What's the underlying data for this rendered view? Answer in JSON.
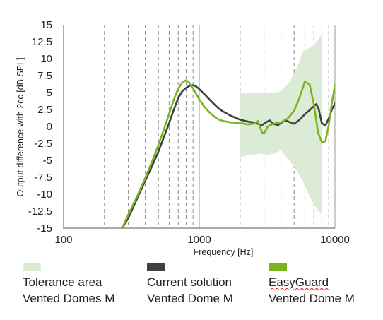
{
  "chart_data": {
    "type": "line",
    "xlabel": "Frequency [Hz]",
    "ylabel": "Output difference with 2cc [dB SPL]",
    "xscale": "log",
    "xlim": [
      100,
      10000
    ],
    "ylim": [
      -15,
      15
    ],
    "xticks": [
      "100",
      "1000",
      "10000"
    ],
    "yticks": [
      "15",
      "12.5",
      "10",
      "7.5",
      "5",
      "2.5",
      "0",
      "-2.5",
      "-5",
      "-7.5",
      "-10",
      "-12.5",
      "-15"
    ],
    "grid": "vertical dashed at minor log decades, solid at decades; no horizontal grid",
    "tolerance_area": {
      "name": "Tolerance area Vented Domes M",
      "color": "#dcebd6",
      "x": [
        2000,
        2400,
        2800,
        3200,
        3600,
        4000,
        4600,
        5200,
        5800,
        6400,
        7000,
        7600,
        8000
      ],
      "upper": [
        5.0,
        5.0,
        5.0,
        5.0,
        5.0,
        5.2,
        6.5,
        8.5,
        11.0,
        11.5,
        12.0,
        13.0,
        13.5
      ],
      "lower": [
        -4.5,
        -4.2,
        -4.0,
        -4.2,
        -4.0,
        -3.5,
        -5.0,
        -6.5,
        -8.0,
        -10.0,
        -11.5,
        -12.5,
        -13.0
      ]
    },
    "series": [
      {
        "name": "Current solution Vented Dome M",
        "color": "#404040",
        "x": [
          270,
          300,
          350,
          400,
          450,
          500,
          550,
          600,
          650,
          700,
          750,
          800,
          850,
          900,
          950,
          1000,
          1100,
          1200,
          1300,
          1400,
          1500,
          1700,
          2000,
          2300,
          2500,
          2700,
          2900,
          3100,
          3300,
          3500,
          3800,
          4000,
          4300,
          4700,
          5000,
          5500,
          6000,
          6500,
          7000,
          7300,
          7600,
          8000,
          8500,
          9000,
          9500,
          10000
        ],
        "y": [
          -15,
          -13.5,
          -10.5,
          -8,
          -5.8,
          -3.7,
          -1.5,
          0.5,
          2.5,
          4.2,
          5.2,
          5.7,
          6.0,
          6.1,
          5.9,
          5.5,
          4.7,
          3.9,
          3.2,
          2.6,
          2.2,
          1.6,
          1.0,
          0.7,
          0.6,
          0.4,
          0.2,
          0.6,
          0.9,
          0.4,
          0.2,
          0.5,
          0.9,
          0.6,
          0.4,
          1.0,
          1.8,
          2.4,
          3.0,
          3.3,
          2.5,
          0.5,
          0.1,
          1.2,
          2.5,
          3.4
        ]
      },
      {
        "name": "EasyGuard Vented Dome M",
        "color": "#7ab51d",
        "x": [
          270,
          300,
          350,
          400,
          450,
          500,
          550,
          600,
          650,
          700,
          750,
          800,
          850,
          900,
          950,
          1000,
          1100,
          1200,
          1300,
          1400,
          1500,
          1700,
          2000,
          2300,
          2500,
          2700,
          2800,
          2900,
          3000,
          3200,
          3500,
          4000,
          4500,
          5000,
          5500,
          6000,
          6500,
          7000,
          7500,
          8000,
          8500,
          9000,
          9500,
          10000
        ],
        "y": [
          -15,
          -13,
          -10.2,
          -7.6,
          -5.1,
          -2.7,
          -0.4,
          1.9,
          4.0,
          5.6,
          6.5,
          6.8,
          6.4,
          5.6,
          4.8,
          4.0,
          2.8,
          2.0,
          1.4,
          1.0,
          0.8,
          0.6,
          0.5,
          0.3,
          0.4,
          0.8,
          0.0,
          -0.9,
          -1.0,
          0.0,
          0.4,
          0.6,
          1.2,
          2.3,
          4.3,
          6.6,
          6.2,
          3.2,
          -0.9,
          -2.3,
          -2.2,
          0.2,
          3.5,
          6.1
        ]
      }
    ]
  },
  "legend": {
    "items": [
      {
        "line1": "Tolerance area",
        "line2": "Vented Domes M",
        "color": "#dcebd6"
      },
      {
        "line1": "Current solution",
        "line2": "Vented Dome M",
        "color": "#404040"
      },
      {
        "line1": "EasyGuard",
        "line2": "Vented Dome M",
        "color": "#7ab51d"
      }
    ]
  }
}
